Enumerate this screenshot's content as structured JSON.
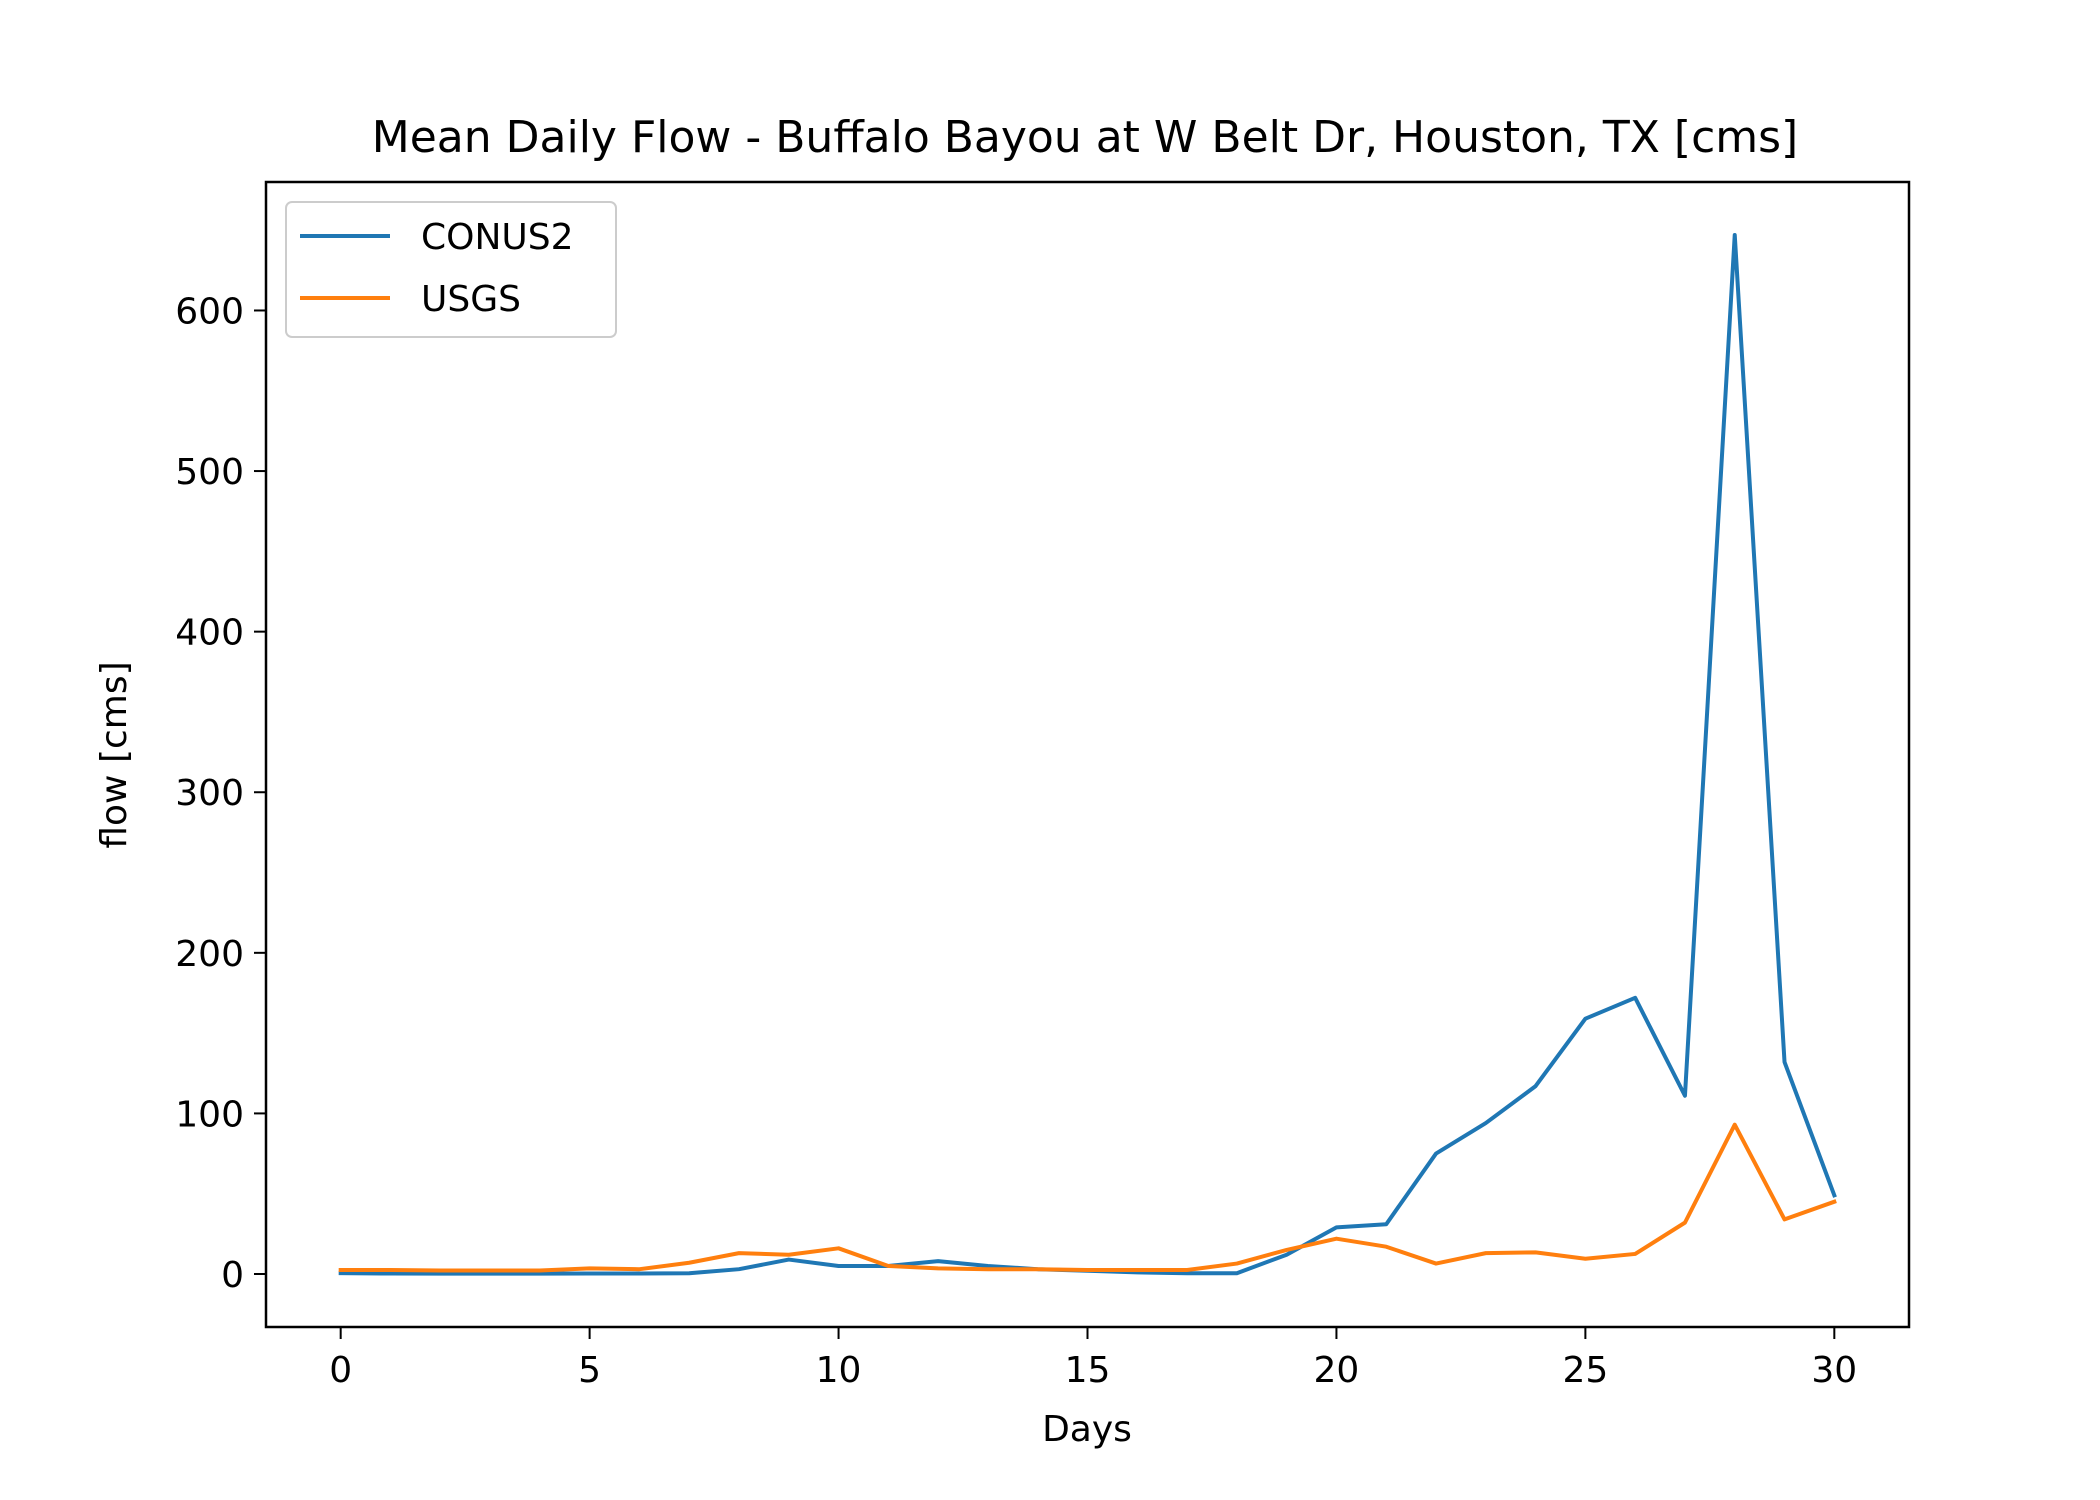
{
  "chart_data": {
    "type": "line",
    "title": "Mean Daily Flow - Buffalo Bayou at W Belt Dr, Houston, TX [cms]",
    "xlabel": "Days",
    "ylabel": "flow [cms]",
    "xlim": [
      -1.5,
      31.5
    ],
    "ylim": [
      -33,
      680
    ],
    "xticks": [
      0,
      5,
      10,
      15,
      20,
      25,
      30
    ],
    "yticks": [
      0,
      100,
      200,
      300,
      400,
      500,
      600
    ],
    "grid": false,
    "legend": "top-left",
    "x": [
      0,
      1,
      2,
      3,
      4,
      5,
      6,
      7,
      8,
      9,
      10,
      11,
      12,
      13,
      14,
      15,
      16,
      17,
      18,
      19,
      20,
      21,
      22,
      23,
      24,
      25,
      26,
      27,
      28,
      29,
      30
    ],
    "series": [
      {
        "name": "CONUS2",
        "color": "#1f77b4",
        "values": [
          0.5,
          0.3,
          0.2,
          0.2,
          0.2,
          0.3,
          0.3,
          0.5,
          3,
          9,
          5,
          5,
          8,
          5,
          3,
          2,
          1,
          0.5,
          0.5,
          12,
          29,
          31,
          75,
          94,
          117,
          159,
          172,
          111,
          647,
          132,
          49
        ]
      },
      {
        "name": "USGS",
        "color": "#ff7f0e",
        "values": [
          2.5,
          2.5,
          2.2,
          2.2,
          2.2,
          3.5,
          3,
          7,
          13,
          12,
          16,
          5,
          3.5,
          3,
          3,
          2.5,
          2.5,
          2.5,
          6.5,
          15,
          22,
          17,
          6.5,
          13,
          13.5,
          9.5,
          12.5,
          32,
          93,
          34,
          45
        ]
      }
    ]
  }
}
